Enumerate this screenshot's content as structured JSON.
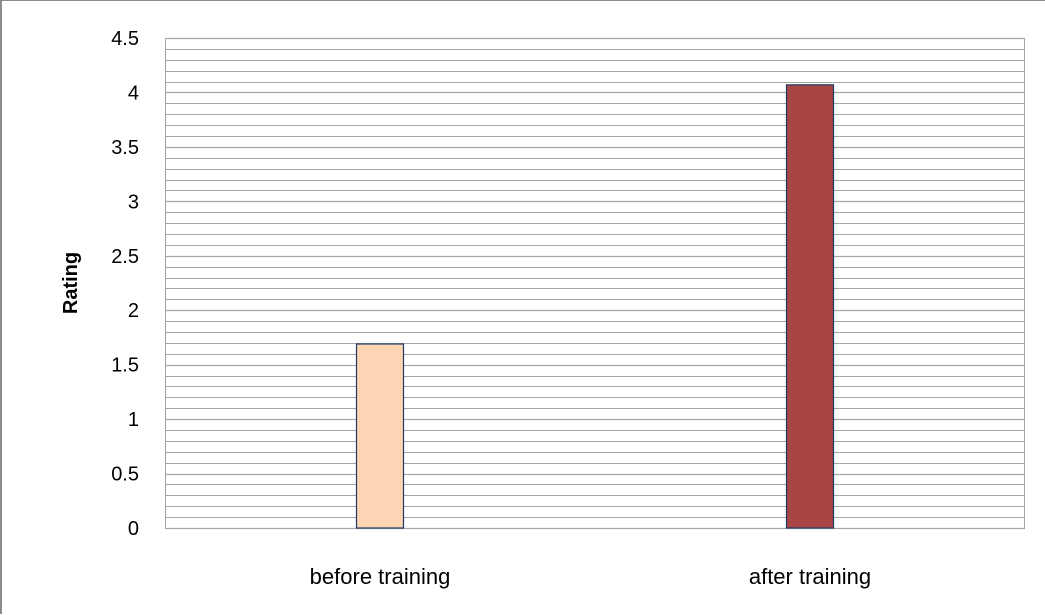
{
  "chart_data": {
    "type": "bar",
    "categories": [
      "before training",
      "after training"
    ],
    "series": [
      {
        "values": [
          1.69,
          4.07
        ],
        "colors": [
          "#FCD5B5",
          "#A84545"
        ]
      }
    ],
    "ylabel": "Rating",
    "xlabel": "",
    "ylim": [
      0,
      4.5
    ],
    "yticks": [
      "0",
      "0.5",
      "1",
      "1.5",
      "2",
      "2.5",
      "3",
      "3.5",
      "4",
      "4.5"
    ],
    "minor_gridlines_per_major": 5,
    "grid": true,
    "legend": "none",
    "bar_outline_color": "#1F3864",
    "gridline_color": "#A6A6A6"
  }
}
